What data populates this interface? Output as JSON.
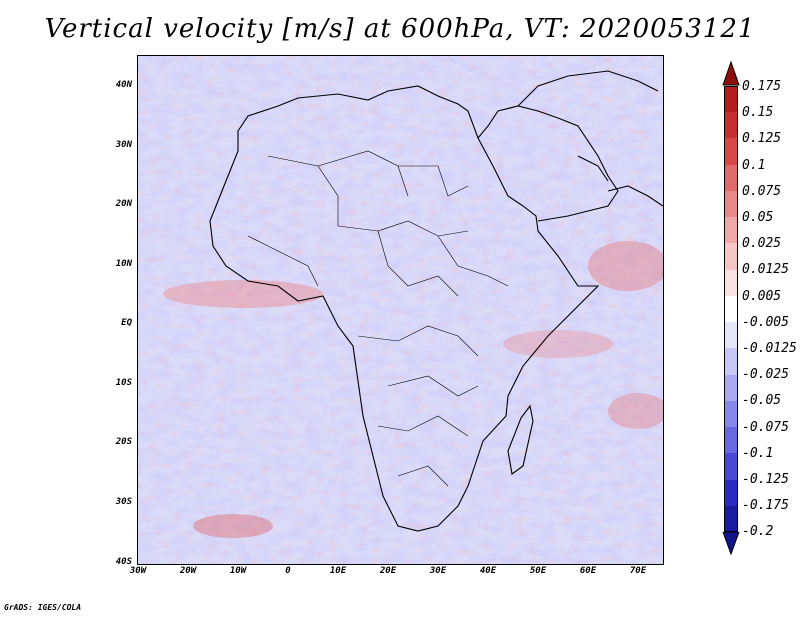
{
  "title": "Vertical velocity [m/s] at 600hPa, VT: 2020053121",
  "credit": "GrADS: IGES/COLA",
  "map": {
    "lon_range": [
      -30,
      75
    ],
    "lat_range": [
      -40,
      45
    ],
    "y_ticks": [
      "40N",
      "30N",
      "20N",
      "10N",
      "EQ",
      "10S",
      "20S",
      "30S",
      "40S"
    ],
    "x_ticks": [
      "30W",
      "20W",
      "10W",
      "0",
      "10E",
      "20E",
      "30E",
      "40E",
      "50E",
      "60E",
      "70E"
    ]
  },
  "colorbar": {
    "labels": [
      "0.175",
      "0.15",
      "0.125",
      "0.1",
      "0.075",
      "0.05",
      "0.025",
      "0.0125",
      "0.005",
      "-0.005",
      "-0.0125",
      "-0.025",
      "-0.05",
      "-0.075",
      "-0.1",
      "-0.125",
      "-0.175",
      "-0.2"
    ],
    "colors": [
      "#8b1010",
      "#b51c1c",
      "#c83030",
      "#d84848",
      "#e06a6a",
      "#e88888",
      "#f0a8a8",
      "#f6c6c6",
      "#fbe2e2",
      "#ffffff",
      "#e6e6fb",
      "#c8c8f6",
      "#a8a8f0",
      "#8888ea",
      "#6868e0",
      "#4848d4",
      "#2a2ac0",
      "#1a1aa0",
      "#14148a"
    ]
  }
}
